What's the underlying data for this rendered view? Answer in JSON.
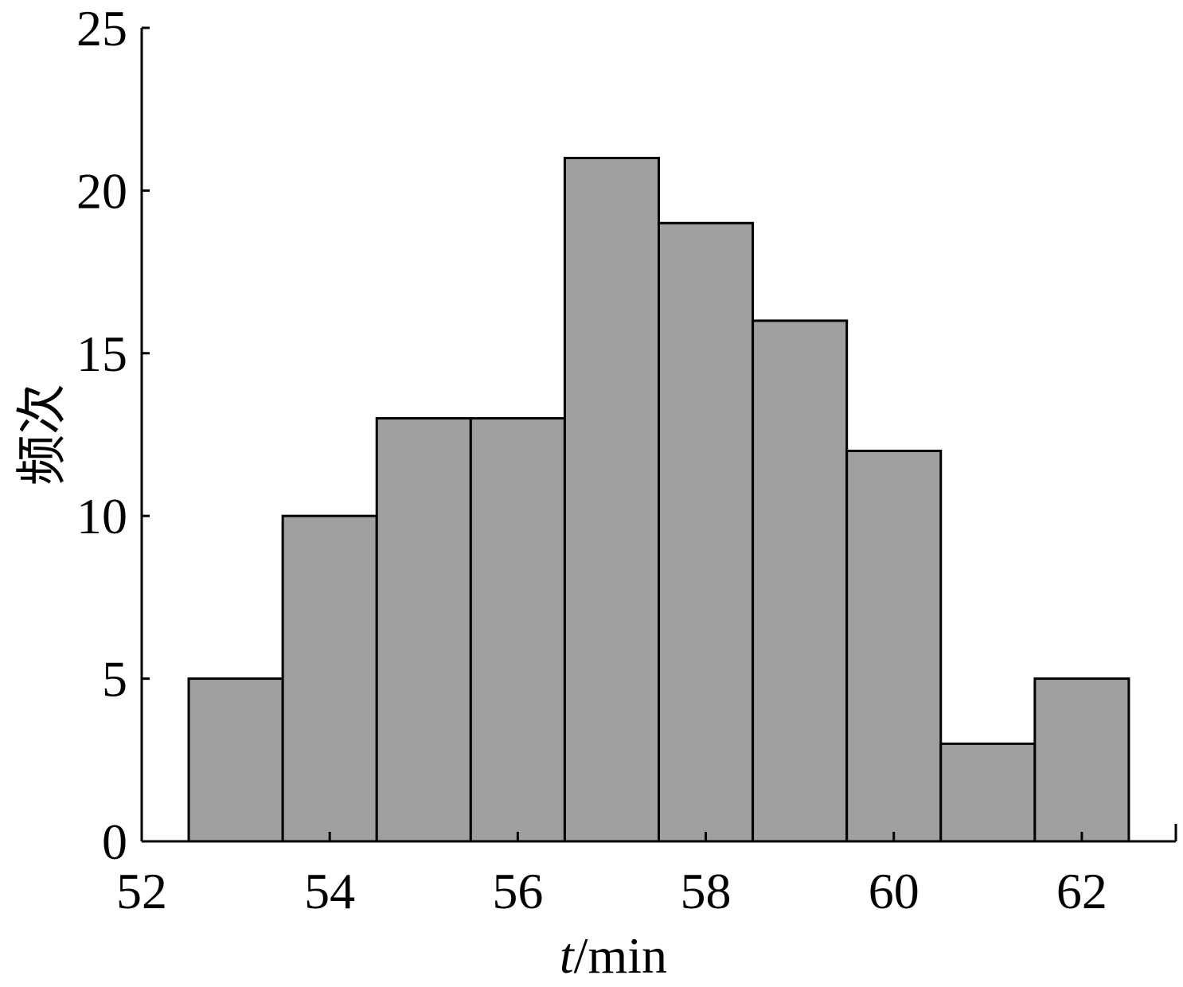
{
  "chart_data": {
    "type": "bar",
    "bar_style": "histogram",
    "bins": [
      {
        "x": 53,
        "value": 5
      },
      {
        "x": 54,
        "value": 10
      },
      {
        "x": 55,
        "value": 13
      },
      {
        "x": 56,
        "value": 13
      },
      {
        "x": 57,
        "value": 21
      },
      {
        "x": 58,
        "value": 19
      },
      {
        "x": 59,
        "value": 16
      },
      {
        "x": 60,
        "value": 12
      },
      {
        "x": 61,
        "value": 3
      },
      {
        "x": 62,
        "value": 5
      }
    ],
    "bin_width": 1,
    "xlim": [
      52,
      63
    ],
    "ylim": [
      0,
      25
    ],
    "xticks": [
      "52",
      "54",
      "56",
      "58",
      "60",
      "62"
    ],
    "yticks": [
      "0",
      "5",
      "10",
      "15",
      "20",
      "25"
    ],
    "xlabel_italic": "t",
    "xlabel_rest": "/min",
    "ylabel": "频次",
    "title": "",
    "grid": false,
    "bar_color": "#a0a0a0",
    "edge_color": "#000000"
  }
}
